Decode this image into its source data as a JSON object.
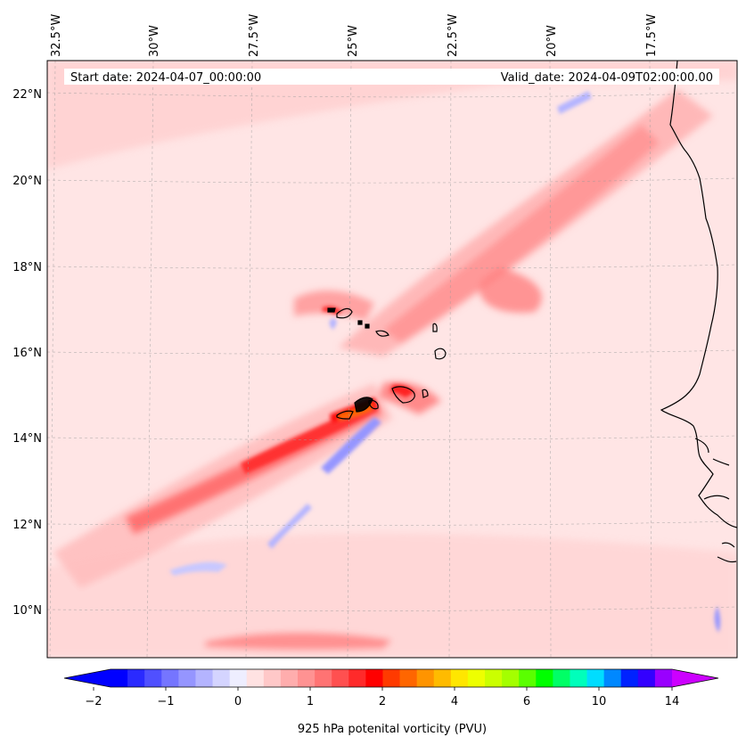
{
  "header": {
    "start_date": "Start date: 2024-04-07_00:00:00",
    "valid_date": "Valid_date: 2024-04-09T02:00:00.00"
  },
  "longitude_labels": [
    "32.5°W",
    "30°W",
    "27.5°W",
    "25°W",
    "22.5°W",
    "20°W",
    "17.5°W"
  ],
  "latitude_labels": [
    "22°N",
    "20°N",
    "18°N",
    "16°N",
    "14°N",
    "12°N",
    "10°N"
  ],
  "colorbar": {
    "title": "925 hPa potenital vorticity (PVU)",
    "tick_labels": [
      "−2",
      "−1",
      "0",
      "1",
      "2",
      "4",
      "6",
      "10",
      "14"
    ],
    "colors": [
      "#0000ff",
      "#2a2aff",
      "#5050ff",
      "#7575ff",
      "#9595ff",
      "#b4b4ff",
      "#d4d4ff",
      "#eeeeff",
      "#ffe2e2",
      "#ffc8c8",
      "#ffadad",
      "#ff9292",
      "#ff7373",
      "#ff5050",
      "#ff2a2a",
      "#ff0000",
      "#ff3a00",
      "#ff6600",
      "#ff9400",
      "#ffbb00",
      "#ffe600",
      "#eeff00",
      "#cbff00",
      "#a4ff00",
      "#5aff00",
      "#00ff00",
      "#00ff66",
      "#00ffbb",
      "#00ddff",
      "#0088ff",
      "#0022ff",
      "#3300ff",
      "#9900ff"
    ],
    "extend_low_color": "#0000ff",
    "extend_high_color": "#cc00ff"
  },
  "map": {
    "variable": "925 hPa potential vorticity",
    "units": "PVU",
    "background_color": "#ffe5e5",
    "coastline_color": "#000000",
    "gridline_style": "dashed"
  }
}
